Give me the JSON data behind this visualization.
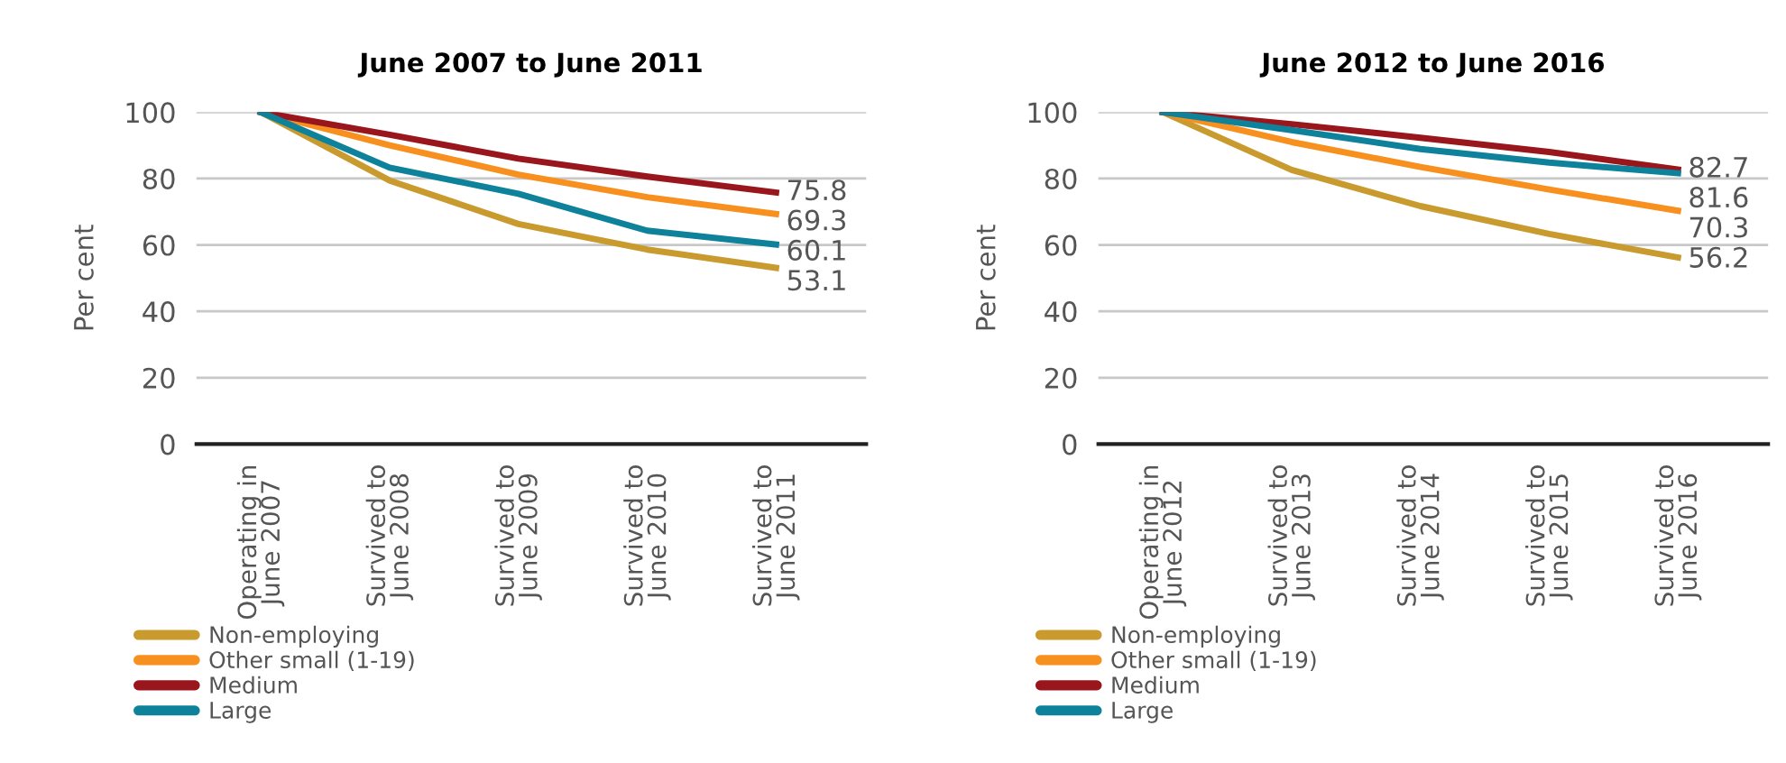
{
  "chart_data": [
    {
      "type": "line",
      "title": "June 2007 to June 2011",
      "ylabel": "Per cent",
      "categories": [
        "Operating in\nJune 2007",
        "Survived to\nJune 2008",
        "Survived to\nJune 2009",
        "Survived to\nJune 2010",
        "Survived to\nJune 2011"
      ],
      "ylim": [
        0,
        100
      ],
      "yticks": [
        0,
        20,
        40,
        60,
        80,
        100
      ],
      "grid": "y",
      "legend": "bottom",
      "marker": "none",
      "line_style": "solid",
      "series": [
        {
          "name": "Non-employing",
          "color": "#c99a2e",
          "values": [
            100,
            79.4,
            66.3,
            58.6,
            53.1
          ],
          "value_labels": [
            null,
            null,
            null,
            null,
            "53.1"
          ]
        },
        {
          "name": "Other small (1-19)",
          "color": "#f7901e",
          "values": [
            100,
            90.0,
            81.2,
            74.4,
            69.3
          ],
          "value_labels": [
            null,
            null,
            null,
            null,
            "69.3"
          ]
        },
        {
          "name": "Medium",
          "color": "#98161c",
          "values": [
            100,
            93.2,
            86.0,
            80.6,
            75.8
          ],
          "value_labels": [
            null,
            null,
            null,
            null,
            "75.8"
          ]
        },
        {
          "name": "Large",
          "color": "#0e829b",
          "values": [
            100,
            83.3,
            75.4,
            64.3,
            60.1
          ],
          "value_labels": [
            null,
            null,
            null,
            null,
            "60.1"
          ]
        }
      ]
    },
    {
      "type": "line",
      "title": "June 2012 to June 2016",
      "ylabel": "Per cent",
      "categories": [
        "Operating in\nJune 2012",
        "Survived to\nJune 2013",
        "Survived to\nJune 2014",
        "Survived to\nJune 2015",
        "Survived to\nJune 2016"
      ],
      "ylim": [
        0,
        100
      ],
      "yticks": [
        0,
        20,
        40,
        60,
        80,
        100
      ],
      "grid": "y",
      "legend": "bottom",
      "marker": "none",
      "line_style": "solid",
      "series": [
        {
          "name": "Non-employing",
          "color": "#c99a2e",
          "values": [
            100,
            82.6,
            71.7,
            63.3,
            56.2
          ],
          "value_labels": [
            null,
            null,
            null,
            null,
            "56.2"
          ]
        },
        {
          "name": "Other small (1-19)",
          "color": "#f7901e",
          "values": [
            100,
            91.0,
            83.5,
            76.7,
            70.3
          ],
          "value_labels": [
            null,
            null,
            null,
            null,
            "70.3"
          ]
        },
        {
          "name": "Medium",
          "color": "#98161c",
          "values": [
            100,
            96.4,
            92.3,
            88.0,
            82.7
          ],
          "value_labels": [
            null,
            null,
            null,
            null,
            "82.7"
          ]
        },
        {
          "name": "Large",
          "color": "#0e829b",
          "values": [
            100,
            94.6,
            88.9,
            84.8,
            81.6
          ],
          "value_labels": [
            null,
            null,
            null,
            null,
            "81.6"
          ]
        }
      ]
    }
  ]
}
